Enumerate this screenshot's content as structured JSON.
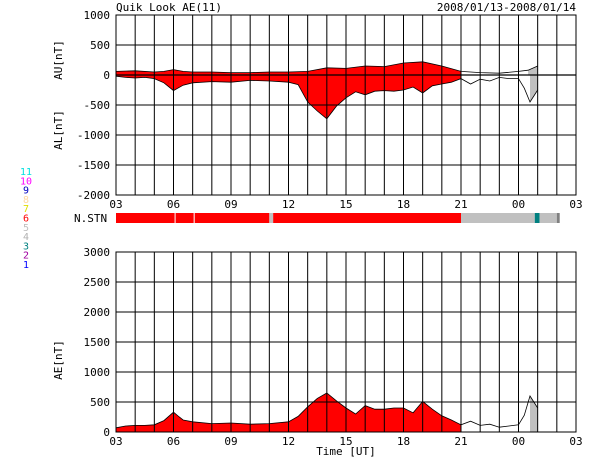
{
  "header": {
    "title": "Quik Look AE(11)",
    "date_range": "2008/01/13-2008/01/14"
  },
  "x_axis": {
    "label": "Time [UT]",
    "tick_labels": [
      "03",
      "06",
      "09",
      "12",
      "15",
      "18",
      "21",
      "00",
      "03"
    ]
  },
  "colors": {
    "quicklook_red": "#ff0000",
    "incomplete_gray": "#c0c0c0",
    "station_teal": "#008080",
    "grid": "#000000"
  },
  "station_legend": [
    {
      "label": "11",
      "color": "#00e0e0"
    },
    {
      "label": "10",
      "color": "#ff00ff"
    },
    {
      "label": "9",
      "color": "#0000c0"
    },
    {
      "label": "8",
      "color": "#ffd8a0"
    },
    {
      "label": "7",
      "color": "#e0e000"
    },
    {
      "label": "6",
      "color": "#ff0000"
    },
    {
      "label": "5",
      "color": "#c0c0c0"
    },
    {
      "label": "4",
      "color": "#b0b0b0"
    },
    {
      "label": "3",
      "color": "#008080"
    },
    {
      "label": "2",
      "color": "#a000a0"
    },
    {
      "label": "1",
      "color": "#0000ff"
    }
  ],
  "chart_data": [
    {
      "type": "area",
      "name": "AU/AL",
      "ylabel_upper": "AU[nT]",
      "ylabel_lower": "AL[nT]",
      "ylim": [
        -2000,
        1000
      ],
      "yticks": [
        1000,
        500,
        0,
        -500,
        -1000,
        -1500,
        -2000
      ],
      "xlim_hours": [
        3,
        27
      ],
      "grid": true,
      "au": {
        "x": [
          3,
          4,
          5,
          5.5,
          6,
          6.5,
          7,
          8,
          9,
          10,
          11,
          12,
          13,
          14,
          15,
          16,
          17,
          18,
          19,
          20,
          21,
          22,
          23,
          24,
          24.5,
          25
        ],
        "y": [
          60,
          70,
          50,
          60,
          90,
          60,
          50,
          50,
          40,
          40,
          50,
          50,
          60,
          120,
          110,
          150,
          140,
          200,
          220,
          150,
          60,
          40,
          30,
          60,
          80,
          150
        ]
      },
      "al": {
        "x": [
          3,
          3.5,
          4,
          4.5,
          5,
          5.5,
          6,
          6.5,
          7,
          8,
          9,
          10,
          11,
          12,
          12.5,
          13,
          13.5,
          14,
          14.5,
          15,
          15.5,
          16,
          16.5,
          17,
          17.5,
          18,
          18.5,
          19,
          19.5,
          20,
          20.5,
          21,
          21.5,
          22,
          22.5,
          23,
          23.5,
          24,
          24.3,
          24.6,
          25
        ],
        "y": [
          -20,
          -40,
          -50,
          -40,
          -60,
          -130,
          -260,
          -170,
          -130,
          -110,
          -120,
          -90,
          -100,
          -120,
          -160,
          -450,
          -600,
          -730,
          -520,
          -380,
          -280,
          -330,
          -270,
          -260,
          -270,
          -250,
          -200,
          -300,
          -180,
          -150,
          -120,
          -60,
          -150,
          -70,
          -100,
          -40,
          -60,
          -60,
          -220,
          -450,
          -250
        ]
      },
      "segments": [
        {
          "from": 3,
          "to": 21,
          "color": "#ff0000"
        },
        {
          "from": 21,
          "to": 24.4,
          "color": "#ffffff"
        },
        {
          "from": 24.4,
          "to": 25,
          "color": "#c0c0c0"
        }
      ]
    },
    {
      "type": "bar",
      "name": "N.STN",
      "label": "N.STN",
      "segments": [
        {
          "from": 3,
          "to": 6.05,
          "color": "#ff0000"
        },
        {
          "from": 6.05,
          "to": 6.12,
          "color": "#ffb0b0"
        },
        {
          "from": 6.12,
          "to": 7.05,
          "color": "#ff0000"
        },
        {
          "from": 7.05,
          "to": 7.12,
          "color": "#ffb0b0"
        },
        {
          "from": 7.12,
          "to": 11.0,
          "color": "#ff0000"
        },
        {
          "from": 11.0,
          "to": 11.2,
          "color": "#c0c0c0"
        },
        {
          "from": 11.2,
          "to": 21.0,
          "color": "#ff0000"
        },
        {
          "from": 21.0,
          "to": 24.85,
          "color": "#c0c0c0"
        },
        {
          "from": 24.85,
          "to": 25.1,
          "color": "#008080"
        },
        {
          "from": 25.1,
          "to": 26.0,
          "color": "#c0c0c0"
        },
        {
          "from": 26.0,
          "to": 26.15,
          "color": "#808080"
        }
      ]
    },
    {
      "type": "area",
      "name": "AE",
      "ylabel": "AE[nT]",
      "ylim": [
        0,
        3000
      ],
      "yticks": [
        3000,
        2500,
        2000,
        1500,
        1000,
        500,
        0
      ],
      "xlim_hours": [
        3,
        27
      ],
      "grid": true,
      "x": [
        3,
        3.5,
        4,
        4.5,
        5,
        5.5,
        6,
        6.3,
        6.5,
        7,
        8,
        9,
        10,
        11,
        12,
        12.5,
        13,
        13.5,
        14,
        14.5,
        15,
        15.5,
        16,
        16.5,
        17,
        17.5,
        18,
        18.5,
        19,
        19.5,
        20,
        20.5,
        21,
        21.5,
        22,
        22.5,
        23,
        23.5,
        24,
        24.3,
        24.6,
        25
      ],
      "y": [
        70,
        100,
        110,
        110,
        120,
        190,
        330,
        250,
        200,
        170,
        140,
        150,
        130,
        140,
        170,
        260,
        420,
        560,
        650,
        520,
        400,
        300,
        440,
        380,
        380,
        400,
        400,
        320,
        510,
        380,
        270,
        200,
        120,
        180,
        110,
        130,
        80,
        100,
        120,
        280,
        600,
        400
      ],
      "segments": [
        {
          "from": 3,
          "to": 21,
          "color": "#ff0000"
        },
        {
          "from": 21,
          "to": 24.4,
          "color": "#ffffff"
        },
        {
          "from": 24.4,
          "to": 25,
          "color": "#c0c0c0"
        }
      ]
    }
  ]
}
